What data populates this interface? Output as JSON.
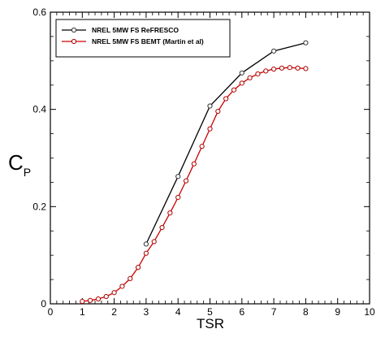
{
  "chart_data": {
    "type": "line",
    "xlabel": "TSR",
    "ylabel_main": "C",
    "ylabel_sub": "P",
    "xlim": [
      0,
      10
    ],
    "ylim": [
      0,
      0.6
    ],
    "x_ticks": [
      "0",
      "1",
      "2",
      "3",
      "4",
      "5",
      "6",
      "7",
      "8",
      "9",
      "10"
    ],
    "y_ticks": [
      "0",
      "0.2",
      "0.4",
      "0.6"
    ],
    "grid": false,
    "legend_position": "top-left",
    "series": [
      {
        "name": "NREL 5MW FS ReFRESCO",
        "color": "#000000",
        "marker": "circle",
        "x": [
          3,
          4,
          5,
          6,
          7,
          8
        ],
        "y": [
          0.123,
          0.262,
          0.407,
          0.475,
          0.52,
          0.537
        ]
      },
      {
        "name": "NREL 5MW FS BEMT (Martin et al)",
        "color": "#cc0000",
        "marker": "circle",
        "x": [
          1.0,
          1.25,
          1.5,
          1.75,
          2.0,
          2.25,
          2.5,
          2.75,
          3.0,
          3.25,
          3.5,
          3.75,
          4.0,
          4.25,
          4.5,
          4.75,
          5.0,
          5.25,
          5.5,
          5.75,
          6.0,
          6.25,
          6.5,
          6.75,
          7.0,
          7.25,
          7.5,
          7.75,
          8.0
        ],
        "y": [
          0.005,
          0.007,
          0.01,
          0.015,
          0.023,
          0.036,
          0.052,
          0.075,
          0.104,
          0.128,
          0.157,
          0.187,
          0.219,
          0.253,
          0.288,
          0.324,
          0.36,
          0.396,
          0.422,
          0.44,
          0.454,
          0.465,
          0.473,
          0.479,
          0.483,
          0.485,
          0.486,
          0.485,
          0.484
        ]
      }
    ]
  }
}
